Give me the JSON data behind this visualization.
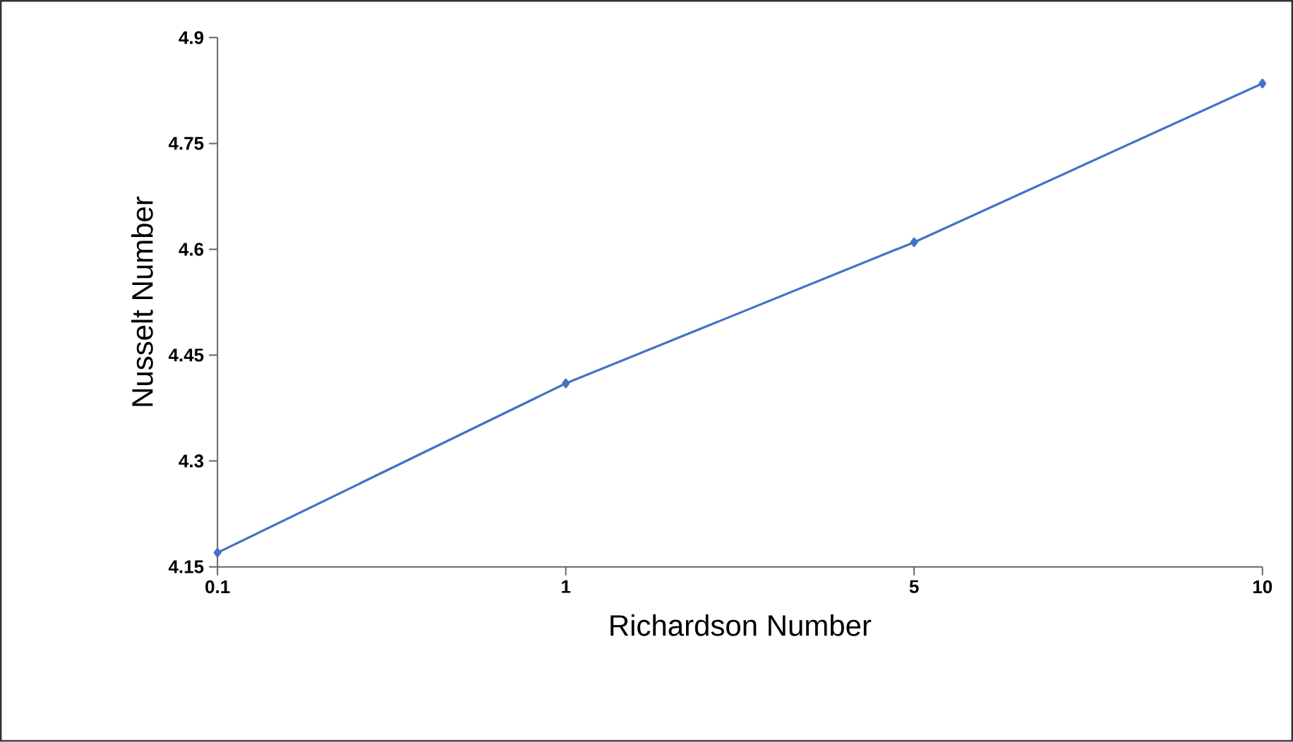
{
  "chart_data": {
    "type": "line",
    "xlabel": "Richardson Number",
    "ylabel": "Nusselt Number",
    "categories": [
      "0.1",
      "1",
      "5",
      "10"
    ],
    "series": [
      {
        "color": "#4472c4",
        "values": [
          4.17,
          4.41,
          4.61,
          4.835
        ]
      }
    ],
    "ylim": [
      4.15,
      4.9
    ],
    "yticks": [
      4.15,
      4.3,
      4.45,
      4.6,
      4.75,
      4.9
    ],
    "marker": "diamond",
    "line_style": "solid"
  }
}
